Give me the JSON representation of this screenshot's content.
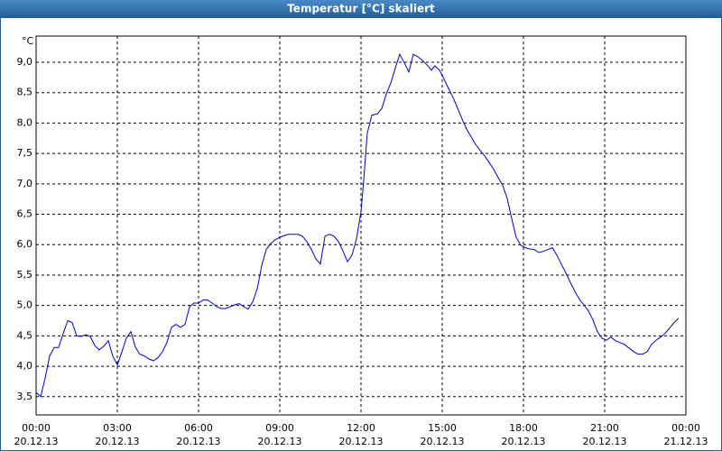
{
  "chart_data": {
    "type": "line",
    "title": "Temperatur [°C] skaliert",
    "y_label": "°C",
    "x": [
      0,
      0.17,
      0.33,
      0.5,
      0.67,
      0.83,
      1.0,
      1.17,
      1.33,
      1.5,
      1.67,
      1.83,
      2.0,
      2.17,
      2.33,
      2.5,
      2.67,
      2.83,
      3.0,
      3.17,
      3.33,
      3.5,
      3.67,
      3.83,
      4.0,
      4.17,
      4.33,
      4.5,
      4.67,
      4.83,
      5.0,
      5.17,
      5.33,
      5.5,
      5.67,
      5.83,
      6.0,
      6.17,
      6.33,
      6.5,
      6.67,
      6.83,
      7.0,
      7.17,
      7.33,
      7.5,
      7.67,
      7.83,
      8.0,
      8.17,
      8.33,
      8.5,
      8.67,
      8.83,
      9.0,
      9.17,
      9.33,
      9.5,
      9.67,
      9.83,
      10.0,
      10.17,
      10.33,
      10.5,
      10.67,
      10.83,
      11.0,
      11.17,
      11.33,
      11.5,
      11.67,
      11.83,
      12.0,
      12.1,
      12.23,
      12.4,
      12.6,
      12.77,
      12.93,
      13.1,
      13.27,
      13.43,
      13.6,
      13.77,
      13.93,
      14.1,
      14.27,
      14.43,
      14.6,
      14.73,
      14.9,
      15.07,
      15.23,
      15.4,
      15.57,
      15.73,
      15.9,
      16.07,
      16.23,
      16.4,
      16.57,
      16.73,
      16.9,
      17.07,
      17.23,
      17.4,
      17.57,
      17.73,
      17.9,
      18.07,
      18.23,
      18.4,
      18.57,
      18.73,
      18.9,
      19.07,
      19.23,
      19.4,
      19.57,
      19.73,
      19.9,
      20.07,
      20.23,
      20.4,
      20.57,
      20.73,
      20.9,
      21.07,
      21.23,
      21.4,
      21.57,
      21.73,
      21.9,
      22.07,
      22.23,
      22.4,
      22.57,
      22.73,
      22.9,
      23.07,
      23.23,
      23.4,
      23.57,
      23.73
    ],
    "series": [
      {
        "name": "Temperatur",
        "color": "#0000c8",
        "values": [
          3.57,
          3.5,
          3.8,
          4.17,
          4.31,
          4.31,
          4.54,
          4.75,
          4.72,
          4.5,
          4.49,
          4.52,
          4.49,
          4.34,
          4.27,
          4.33,
          4.42,
          4.17,
          4.02,
          4.24,
          4.46,
          4.57,
          4.31,
          4.2,
          4.17,
          4.12,
          4.09,
          4.14,
          4.24,
          4.39,
          4.64,
          4.69,
          4.64,
          4.69,
          4.98,
          5.04,
          5.04,
          5.09,
          5.09,
          5.04,
          4.98,
          4.95,
          4.95,
          4.98,
          5.01,
          5.03,
          4.98,
          4.94,
          5.06,
          5.28,
          5.65,
          5.92,
          6.02,
          6.08,
          6.12,
          6.15,
          6.17,
          6.17,
          6.17,
          6.14,
          6.05,
          5.92,
          5.77,
          5.68,
          6.14,
          6.17,
          6.14,
          6.05,
          5.9,
          5.72,
          5.83,
          6.09,
          6.54,
          7.06,
          7.83,
          8.13,
          8.15,
          8.24,
          8.47,
          8.66,
          8.91,
          9.13,
          8.99,
          8.84,
          9.13,
          9.09,
          9.03,
          8.96,
          8.87,
          8.94,
          8.87,
          8.72,
          8.57,
          8.42,
          8.24,
          8.07,
          7.9,
          7.77,
          7.65,
          7.55,
          7.46,
          7.35,
          7.24,
          7.1,
          6.98,
          6.76,
          6.42,
          6.12,
          5.99,
          5.95,
          5.93,
          5.92,
          5.87,
          5.89,
          5.92,
          5.95,
          5.83,
          5.68,
          5.53,
          5.38,
          5.23,
          5.1,
          5.01,
          4.91,
          4.76,
          4.57,
          4.46,
          4.43,
          4.48,
          4.42,
          4.39,
          4.36,
          4.3,
          4.24,
          4.2,
          4.2,
          4.24,
          4.36,
          4.43,
          4.48,
          4.54,
          4.63,
          4.72,
          4.79
        ]
      }
    ],
    "xlim": [
      0,
      24
    ],
    "xticks": [
      {
        "value": 0,
        "label": "00:00",
        "date": "20.12.13"
      },
      {
        "value": 3,
        "label": "03:00",
        "date": "20.12.13"
      },
      {
        "value": 6,
        "label": "06:00",
        "date": "20.12.13"
      },
      {
        "value": 9,
        "label": "09:00",
        "date": "20.12.13"
      },
      {
        "value": 12,
        "label": "12:00",
        "date": "20.12.13"
      },
      {
        "value": 15,
        "label": "15:00",
        "date": "20.12.13"
      },
      {
        "value": 18,
        "label": "18:00",
        "date": "20.12.13"
      },
      {
        "value": 21,
        "label": "21:00",
        "date": "20.12.13"
      },
      {
        "value": 24,
        "label": "00:00",
        "date": "21.12.13"
      }
    ],
    "ylim": [
      3.2,
      9.43
    ],
    "yticks": [
      {
        "value": 3.5,
        "label": "3,5"
      },
      {
        "value": 4.0,
        "label": "4,0"
      },
      {
        "value": 4.5,
        "label": "4,5"
      },
      {
        "value": 5.0,
        "label": "5,0"
      },
      {
        "value": 5.5,
        "label": "5,5"
      },
      {
        "value": 6.0,
        "label": "6,0"
      },
      {
        "value": 6.5,
        "label": "6,5"
      },
      {
        "value": 7.0,
        "label": "7,0"
      },
      {
        "value": 7.5,
        "label": "7,5"
      },
      {
        "value": 8.0,
        "label": "8,0"
      },
      {
        "value": 8.5,
        "label": "8,5"
      },
      {
        "value": 9.0,
        "label": "9,0"
      }
    ],
    "grid": true
  }
}
